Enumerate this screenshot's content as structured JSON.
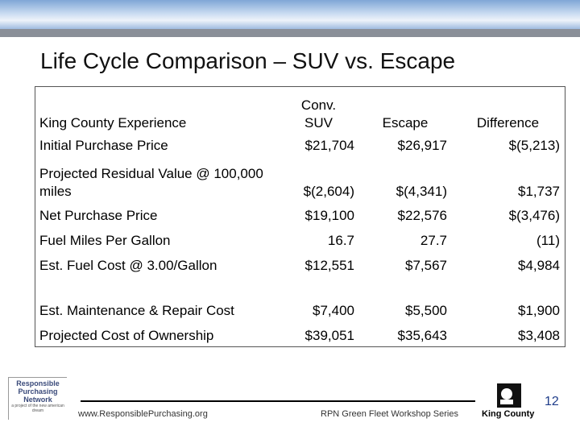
{
  "header": {
    "title": "Life Cycle Comparison – SUV vs. Escape"
  },
  "table": {
    "columns": [
      "King County Experience",
      "Conv.\nSUV",
      "Escape",
      "Difference"
    ],
    "rows": [
      [
        "Initial Purchase Price",
        "$21,704",
        "$26,917",
        "$(5,213)"
      ],
      [
        "Projected Residual Value @ 100,000 miles",
        "$(2,604)",
        "$(4,341)",
        "$1,737"
      ],
      [
        "Net Purchase Price",
        "$19,100",
        "$22,576",
        "$(3,476)"
      ],
      [
        "Fuel Miles Per Gallon",
        "16.7",
        "27.7",
        "(11)"
      ],
      [
        "Est. Fuel Cost @ 3.00/Gallon",
        "$12,551",
        "$7,567",
        "$4,984"
      ],
      [
        "Est. Maintenance & Repair Cost",
        "$7,400",
        "$5,500",
        "$1,900"
      ],
      [
        "Projected Cost of Ownership",
        "$39,051",
        "$35,643",
        "$3,408"
      ]
    ]
  },
  "footer": {
    "logo_name": "Responsible Purchasing Network",
    "logo_tagline": "a project of the new american dream",
    "url": "www.ResponsiblePurchasing.org",
    "series": "RPN Green Fleet Workshop Series",
    "org": "King County",
    "page": "12"
  }
}
